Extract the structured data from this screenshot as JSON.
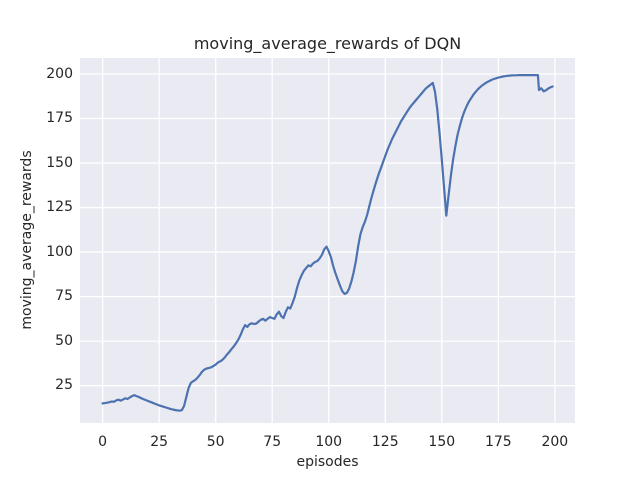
{
  "chart_data": {
    "type": "line",
    "title": "moving_average_rewards of DQN",
    "xlabel": "episodes",
    "ylabel": "moving_average_rewards",
    "xlim": [
      -10,
      208.9
    ],
    "ylim": [
      4,
      209
    ],
    "xticks": [
      0,
      25,
      50,
      75,
      100,
      125,
      150,
      175,
      200
    ],
    "yticks": [
      25,
      50,
      75,
      100,
      125,
      150,
      175,
      200
    ],
    "grid": true,
    "legend": "none",
    "style": {
      "figure_bg": "#ffffff",
      "plot_bg": "#eaeaf2",
      "grid_color": "#ffffff",
      "line_color": "#4c72b0",
      "text_color": "#262626"
    },
    "series": [
      {
        "name": "DQN",
        "points": [
          [
            0,
            15
          ],
          [
            1,
            15.2
          ],
          [
            2,
            15.4
          ],
          [
            3,
            15.7
          ],
          [
            4,
            16.1
          ],
          [
            5,
            15.9
          ],
          [
            6,
            16.7
          ],
          [
            7,
            17.1
          ],
          [
            8,
            16.6
          ],
          [
            9,
            17.2
          ],
          [
            10,
            17.9
          ],
          [
            11,
            17.5
          ],
          [
            12,
            18.3
          ],
          [
            13,
            19.1
          ],
          [
            14,
            19.6
          ],
          [
            15,
            19.1
          ],
          [
            16,
            18.6
          ],
          [
            17,
            18
          ],
          [
            18,
            17.4
          ],
          [
            19,
            16.9
          ],
          [
            20,
            16.4
          ],
          [
            21,
            15.9
          ],
          [
            22,
            15.4
          ],
          [
            23,
            14.9
          ],
          [
            24,
            14.4
          ],
          [
            25,
            13.9
          ],
          [
            26,
            13.5
          ],
          [
            27,
            13.1
          ],
          [
            28,
            12.7
          ],
          [
            29,
            12.3
          ],
          [
            30,
            11.9
          ],
          [
            31,
            11.6
          ],
          [
            32,
            11.3
          ],
          [
            33,
            11.1
          ],
          [
            34,
            10.9
          ],
          [
            35,
            11.2
          ],
          [
            36,
            13.5
          ],
          [
            37,
            18.5
          ],
          [
            38,
            23.5
          ],
          [
            39,
            26.5
          ],
          [
            40,
            27.5
          ],
          [
            41,
            28.2
          ],
          [
            42,
            29.5
          ],
          [
            43,
            31
          ],
          [
            44,
            32.8
          ],
          [
            45,
            34
          ],
          [
            46,
            34.6
          ],
          [
            47,
            34.9
          ],
          [
            48,
            35.3
          ],
          [
            49,
            36
          ],
          [
            50,
            36.8
          ],
          [
            51,
            38
          ],
          [
            52,
            38.6
          ],
          [
            53,
            39.5
          ],
          [
            54,
            40.8
          ],
          [
            55,
            42.5
          ],
          [
            56,
            43.8
          ],
          [
            57,
            45.5
          ],
          [
            58,
            47
          ],
          [
            59,
            48.8
          ],
          [
            60,
            50.8
          ],
          [
            61,
            53.5
          ],
          [
            62,
            56.5
          ],
          [
            63,
            59
          ],
          [
            64,
            58
          ],
          [
            65,
            59.5
          ],
          [
            66,
            60
          ],
          [
            67,
            59.6
          ],
          [
            68,
            59.9
          ],
          [
            69,
            61
          ],
          [
            70,
            62
          ],
          [
            71,
            62.5
          ],
          [
            72,
            61.5
          ],
          [
            73,
            62.6
          ],
          [
            74,
            63.5
          ],
          [
            75,
            63
          ],
          [
            76,
            62.5
          ],
          [
            77,
            65
          ],
          [
            78,
            66.5
          ],
          [
            79,
            64
          ],
          [
            80,
            63
          ],
          [
            81,
            66.5
          ],
          [
            82,
            69
          ],
          [
            83,
            68.3
          ],
          [
            84,
            71.5
          ],
          [
            85,
            75
          ],
          [
            86,
            80
          ],
          [
            87,
            84
          ],
          [
            88,
            87
          ],
          [
            89,
            89.5
          ],
          [
            90,
            91
          ],
          [
            91,
            92.5
          ],
          [
            92,
            92
          ],
          [
            93,
            93.5
          ],
          [
            94,
            94.5
          ],
          [
            95,
            95
          ],
          [
            96,
            96.5
          ],
          [
            97,
            98.5
          ],
          [
            98,
            101.5
          ],
          [
            99,
            103
          ],
          [
            100,
            100.5
          ],
          [
            101,
            97
          ],
          [
            102,
            92
          ],
          [
            103,
            88
          ],
          [
            104,
            84.5
          ],
          [
            105,
            81
          ],
          [
            106,
            78
          ],
          [
            107,
            76.5
          ],
          [
            108,
            77
          ],
          [
            109,
            79.5
          ],
          [
            110,
            83.5
          ],
          [
            111,
            88.5
          ],
          [
            112,
            95
          ],
          [
            113,
            103
          ],
          [
            114,
            110
          ],
          [
            115,
            114
          ],
          [
            116,
            117
          ],
          [
            117,
            121
          ],
          [
            118,
            126
          ],
          [
            119,
            131
          ],
          [
            120,
            135.5
          ],
          [
            121,
            139.5
          ],
          [
            122,
            143.5
          ],
          [
            123,
            147
          ],
          [
            124,
            150.5
          ],
          [
            125,
            154
          ],
          [
            126,
            157.5
          ],
          [
            127,
            160.5
          ],
          [
            128,
            163.5
          ],
          [
            129,
            166
          ],
          [
            130,
            168.5
          ],
          [
            131,
            171
          ],
          [
            132,
            173.5
          ],
          [
            133,
            175.5
          ],
          [
            134,
            177.5
          ],
          [
            135,
            179.5
          ],
          [
            136,
            181.5
          ],
          [
            137,
            183
          ],
          [
            138,
            184.5
          ],
          [
            139,
            186
          ],
          [
            140,
            187.5
          ],
          [
            141,
            189
          ],
          [
            142,
            190.5
          ],
          [
            143,
            192
          ],
          [
            144,
            193
          ],
          [
            145,
            194
          ],
          [
            146,
            195
          ],
          [
            147,
            190
          ],
          [
            148,
            180
          ],
          [
            149,
            167
          ],
          [
            150,
            152
          ],
          [
            151,
            136
          ],
          [
            152,
            120.5
          ],
          [
            153,
            132
          ],
          [
            154,
            143
          ],
          [
            155,
            152
          ],
          [
            156,
            159.5
          ],
          [
            157,
            166
          ],
          [
            158,
            171
          ],
          [
            159,
            175.5
          ],
          [
            160,
            179
          ],
          [
            161,
            182
          ],
          [
            162,
            184.5
          ],
          [
            163,
            186.5
          ],
          [
            164,
            188.5
          ],
          [
            165,
            190
          ],
          [
            166,
            191.5
          ],
          [
            167,
            192.7
          ],
          [
            168,
            193.7
          ],
          [
            169,
            194.6
          ],
          [
            170,
            195.4
          ],
          [
            171,
            196.1
          ],
          [
            172,
            196.7
          ],
          [
            173,
            197.2
          ],
          [
            174,
            197.6
          ],
          [
            175,
            198
          ],
          [
            176,
            198.3
          ],
          [
            177,
            198.6
          ],
          [
            178,
            198.8
          ],
          [
            179,
            199
          ],
          [
            180,
            199.1
          ],
          [
            181,
            199.2
          ],
          [
            182,
            199.3
          ],
          [
            183,
            199.3
          ],
          [
            184,
            199.4
          ],
          [
            185,
            199.4
          ],
          [
            186,
            199.4
          ],
          [
            187,
            199.4
          ],
          [
            188,
            199.4
          ],
          [
            189,
            199.4
          ],
          [
            190,
            199.4
          ],
          [
            191,
            199.4
          ],
          [
            192,
            199.4
          ],
          [
            192.5,
            199.4
          ],
          [
            193,
            191
          ],
          [
            194,
            192
          ],
          [
            195,
            190.3
          ],
          [
            196,
            190.8
          ],
          [
            197,
            191.8
          ],
          [
            198,
            192.5
          ],
          [
            199,
            193
          ]
        ]
      }
    ]
  }
}
